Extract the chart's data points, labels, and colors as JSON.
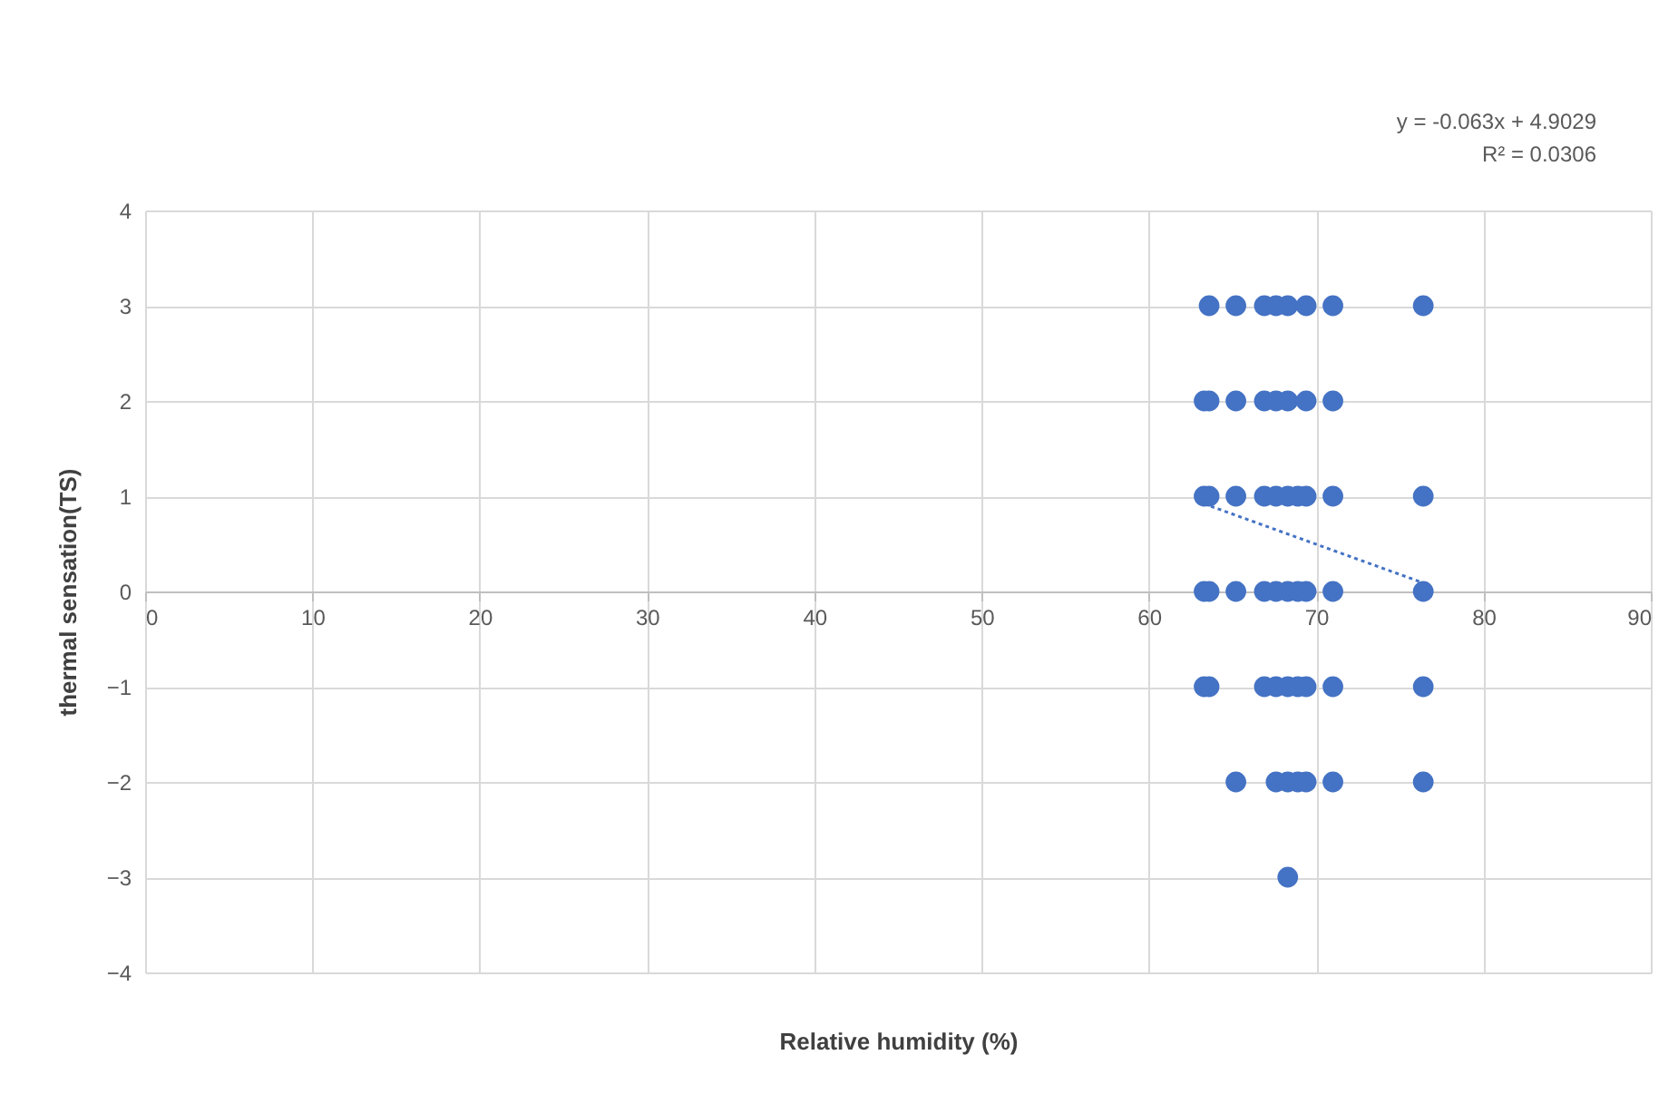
{
  "chart_data": {
    "type": "scatter",
    "xlabel": "Relative humidity (%)",
    "ylabel": "thermal sensation(TS)",
    "annotations": [
      "y = -0.063x + 4.9029",
      "R² = 0.0306"
    ],
    "xlim": [
      0,
      90
    ],
    "xticks": [
      0,
      10,
      20,
      30,
      40,
      50,
      60,
      70,
      80,
      90
    ],
    "ylim": [
      -4,
      4
    ],
    "yticks": [
      -4,
      -3,
      -2,
      -1,
      0,
      1,
      2,
      3,
      4
    ],
    "grid": true,
    "marker": "circle",
    "series": [
      {
        "color": "#4472c4",
        "x": [
          63.6,
          65.2,
          66.9,
          67.6,
          68.3,
          69.4,
          71.0,
          76.4,
          63.3,
          63.6,
          65.2,
          66.9,
          67.6,
          68.3,
          69.4,
          71.0,
          63.3,
          63.6,
          65.2,
          66.9,
          67.6,
          68.3,
          68.9,
          69.4,
          71.0,
          76.4,
          63.3,
          63.6,
          65.2,
          66.9,
          67.6,
          68.3,
          68.9,
          69.4,
          71.0,
          76.4,
          63.3,
          63.6,
          66.9,
          67.6,
          68.3,
          68.9,
          69.4,
          71.0,
          76.4,
          65.2,
          67.6,
          68.3,
          68.9,
          69.4,
          71.0,
          76.4,
          68.3
        ],
        "values": [
          3,
          3,
          3,
          3,
          3,
          3,
          3,
          3,
          2,
          2,
          2,
          2,
          2,
          2,
          2,
          2,
          1,
          1,
          1,
          1,
          1,
          1,
          1,
          1,
          1,
          1,
          0,
          0,
          0,
          0,
          0,
          0,
          0,
          0,
          0,
          0,
          -1,
          -1,
          -1,
          -1,
          -1,
          -1,
          -1,
          -1,
          -1,
          -2,
          -2,
          -2,
          -2,
          -2,
          -2,
          -2,
          -3
        ]
      },
      {
        "type": "line",
        "color": "#4472c4",
        "line_style": "dotted",
        "marker": "none",
        "x": [
          63.3,
          76.4
        ],
        "values": [
          0.92,
          0.09
        ]
      }
    ]
  }
}
